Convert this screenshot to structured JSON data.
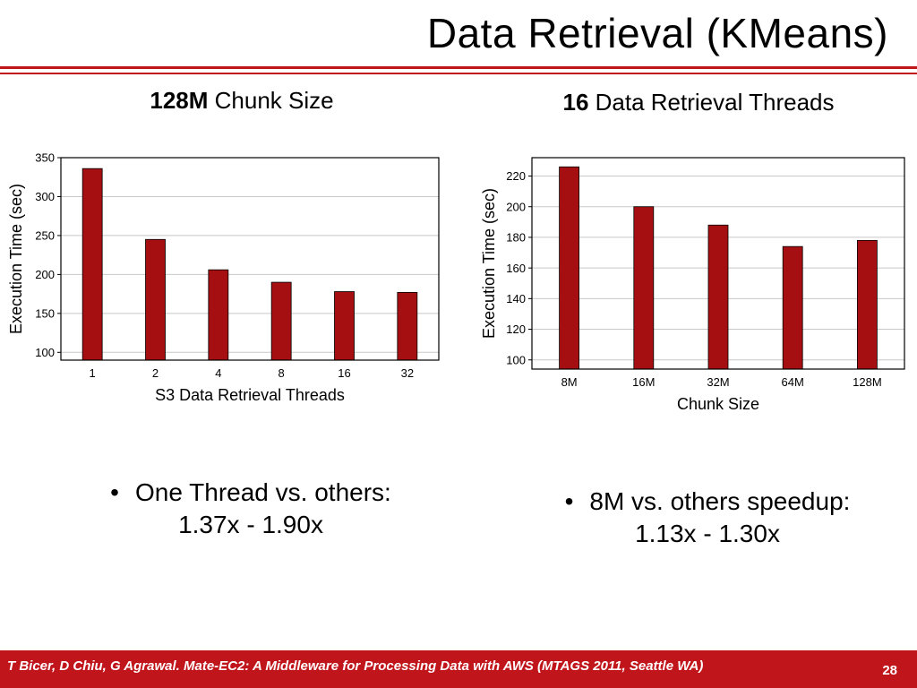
{
  "slide": {
    "title": "Data Retrieval (KMeans)",
    "footer_citation": "T Bicer, D Chiu, G Agrawal. Mate-EC2: A Middleware for Processing Data with AWS (MTAGS 2011, Seattle WA)",
    "page_number": "28",
    "accent_color": "#c0151b"
  },
  "left_panel": {
    "heading_bold": "128M",
    "heading_rest": " Chunk Size",
    "bullet_line1": "One Thread vs. others:",
    "bullet_line2": "1.37x - 1.90x"
  },
  "right_panel": {
    "heading_bold": "16",
    "heading_rest": " Data Retrieval Threads",
    "bullet_line1": "8M vs. others speedup:",
    "bullet_line2": "1.13x - 1.30x"
  },
  "chart_data": [
    {
      "type": "bar",
      "categories": [
        "1",
        "2",
        "4",
        "8",
        "16",
        "32"
      ],
      "values": [
        336,
        245,
        206,
        190,
        178,
        177
      ],
      "xlabel": "S3 Data Retrieval Threads",
      "ylabel": "Execution Time (sec)",
      "ylim": [
        90,
        350
      ],
      "yticks": [
        100,
        150,
        200,
        250,
        300,
        350
      ],
      "grid": true,
      "bar_color": "#a50f12"
    },
    {
      "type": "bar",
      "categories": [
        "8M",
        "16M",
        "32M",
        "64M",
        "128M"
      ],
      "values": [
        226,
        200,
        188,
        174,
        178
      ],
      "xlabel": "Chunk Size",
      "ylabel": "Execution Time (sec)",
      "ylim": [
        94,
        232
      ],
      "yticks": [
        100,
        120,
        140,
        160,
        180,
        200,
        220
      ],
      "grid": true,
      "bar_color": "#a50f12"
    }
  ]
}
